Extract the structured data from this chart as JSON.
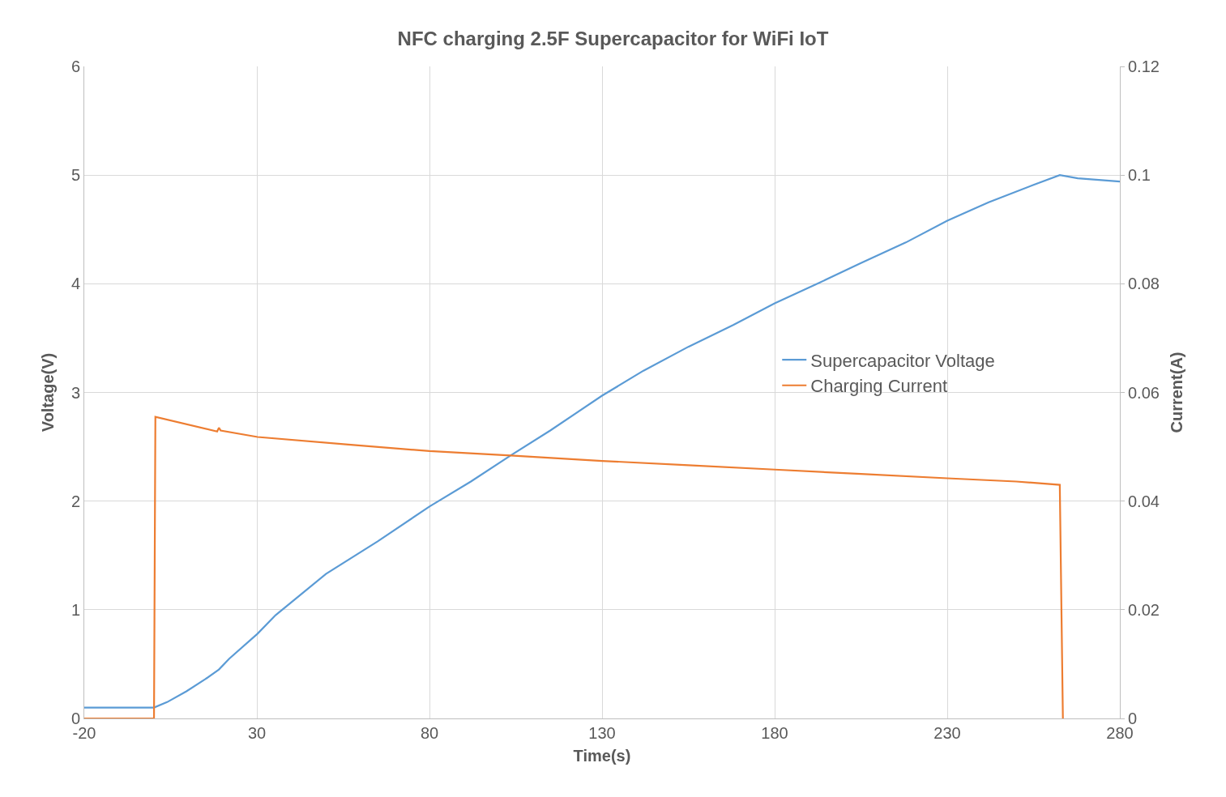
{
  "chart_data": {
    "type": "line",
    "title": "NFC charging 2.5F Supercapacitor for WiFi IoT",
    "xlabel": "Time(s)",
    "ylabel": "Voltage(V)",
    "y2label": "Current(A)",
    "xlim": [
      -20,
      280
    ],
    "xticks": [
      -20,
      30,
      80,
      130,
      180,
      230,
      280
    ],
    "ylim": [
      0,
      6
    ],
    "yticks": [
      0,
      1,
      2,
      3,
      4,
      5,
      6
    ],
    "y2lim": [
      0,
      0.12
    ],
    "y2ticks": [
      0,
      0.02,
      0.04,
      0.06,
      0.08,
      0.1,
      0.12
    ],
    "grid": true,
    "legend": "right",
    "marker": "none",
    "line_style": "solid",
    "series": [
      {
        "name": "Supercapacitor Voltage",
        "color": "#5b9bd5",
        "x": [
          -20,
          0.2,
          4,
          9.6,
          15,
          19,
          22,
          30.2,
          35.4,
          50,
          65,
          80,
          92,
          103.5,
          115,
          130,
          142,
          155,
          168,
          180,
          193,
          205,
          218,
          230,
          242,
          255,
          262.6,
          267.8,
          280
        ],
        "values": [
          0.1,
          0.1,
          0.15,
          0.25,
          0.36,
          0.45,
          0.55,
          0.78,
          0.95,
          1.33,
          1.63,
          1.95,
          2.18,
          2.42,
          2.65,
          2.97,
          3.2,
          3.42,
          3.62,
          3.82,
          4.01,
          4.19,
          4.38,
          4.58,
          4.75,
          4.91,
          5.0,
          4.97,
          4.94
        ]
      },
      {
        "name": "Charging Current",
        "color": "#ed7d31",
        "axis": "y2",
        "x": [
          -20,
          0.2,
          0.6,
          18.5,
          19,
          19.5,
          30.2,
          56.5,
          80,
          103.5,
          130,
          155,
          180,
          205,
          230,
          250,
          262.6,
          263.5
        ],
        "values": [
          0,
          0,
          0.0555,
          0.0528,
          0.0535,
          0.053,
          0.0518,
          0.0504,
          0.0492,
          0.0484,
          0.0474,
          0.0466,
          0.0458,
          0.045,
          0.0442,
          0.0436,
          0.043,
          0
        ]
      }
    ]
  }
}
